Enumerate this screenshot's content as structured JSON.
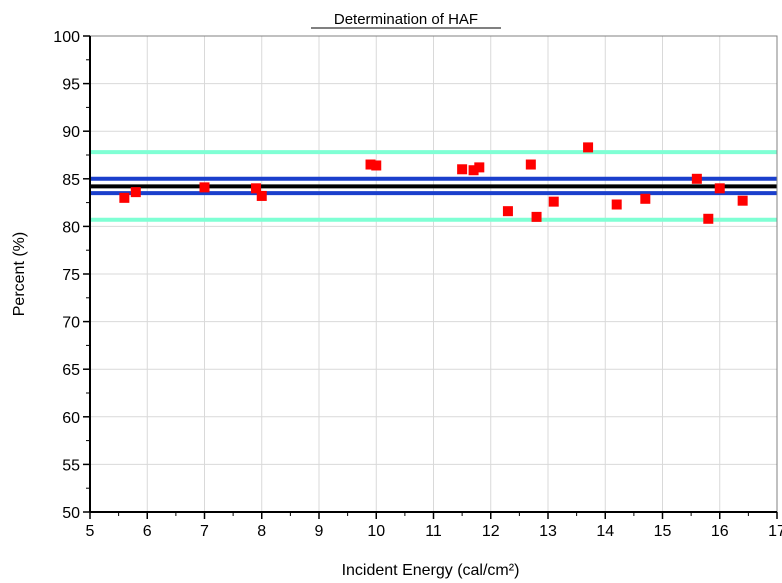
{
  "chart_data": {
    "type": "scatter",
    "title": "Determination of HAF",
    "xlabel": "Incident Energy (cal/cm²)",
    "ylabel": "Percent (%)",
    "xlim": [
      5,
      17
    ],
    "ylim": [
      50,
      100
    ],
    "x_ticks": [
      "5",
      "6",
      "7",
      "8",
      "9",
      "10",
      "11",
      "12",
      "13",
      "14",
      "15",
      "16",
      "17"
    ],
    "y_ticks": [
      "50",
      "55",
      "60",
      "65",
      "70",
      "75",
      "80",
      "85",
      "90",
      "95",
      "100"
    ],
    "grid": true,
    "legend": "none",
    "series": [
      {
        "marker": "square",
        "color": "#ff0000",
        "points": [
          [
            5.6,
            83.0
          ],
          [
            5.8,
            83.6
          ],
          [
            7.0,
            84.1
          ],
          [
            7.9,
            84.0
          ],
          [
            8.0,
            83.2
          ],
          [
            9.9,
            86.5
          ],
          [
            10.0,
            86.4
          ],
          [
            11.5,
            86.0
          ],
          [
            11.7,
            85.9
          ],
          [
            11.8,
            86.2
          ],
          [
            12.3,
            81.6
          ],
          [
            12.7,
            86.5
          ],
          [
            12.8,
            81.0
          ],
          [
            13.1,
            82.6
          ],
          [
            13.7,
            88.3
          ],
          [
            14.2,
            82.3
          ],
          [
            14.7,
            82.9
          ],
          [
            15.6,
            85.0
          ],
          [
            15.8,
            80.8
          ],
          [
            16.0,
            84.0
          ],
          [
            16.4,
            82.7
          ]
        ]
      }
    ],
    "reference_lines": [
      {
        "y": 87.8,
        "color": "#7fffd4"
      },
      {
        "y": 80.7,
        "color": "#7fffd4"
      },
      {
        "y": 85.0,
        "color": "#1a3fcc"
      },
      {
        "y": 83.5,
        "color": "#1a3fcc"
      },
      {
        "y": 84.2,
        "color": "#000000"
      }
    ]
  }
}
